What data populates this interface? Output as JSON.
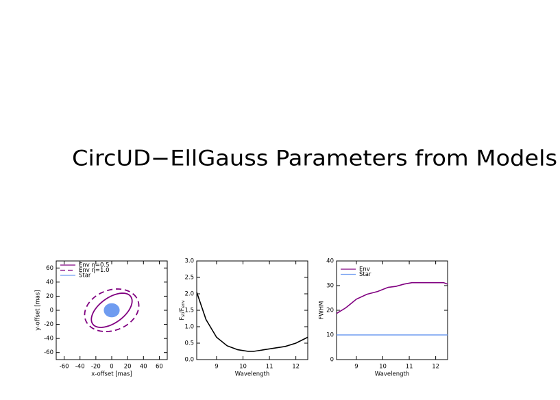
{
  "title": "CircUD−EllGauss Parameters from Models",
  "chart_data": [
    {
      "type": "ellipse",
      "xlabel": "x-offset [mas]",
      "ylabel": "y-offset [mas]",
      "xlim": [
        -70,
        70
      ],
      "ylim": [
        -70,
        70
      ],
      "xticks": [
        -60,
        -40,
        -20,
        0,
        20,
        40,
        60
      ],
      "yticks": [
        -60,
        -40,
        -20,
        0,
        20,
        40,
        60
      ],
      "legend": "upper left",
      "series": [
        {
          "name": "Env η=0.5",
          "color": "#800080",
          "dashed": false,
          "filled": false,
          "center": [
            0,
            0
          ],
          "major": 31,
          "minor": 17,
          "angle": 42
        },
        {
          "name": "Env η=1.0",
          "color": "#800080",
          "dashed": true,
          "filled": false,
          "center": [
            0,
            0
          ],
          "major": 36,
          "minor": 28,
          "angle": 30
        },
        {
          "name": "Star",
          "color": "#6f9cf0",
          "dashed": false,
          "filled": true,
          "center": [
            0,
            0
          ],
          "major": 10,
          "minor": 10,
          "angle": 0
        }
      ]
    },
    {
      "type": "line",
      "xlabel": "Wavelength",
      "ylabel": [
        "F",
        "st",
        "/F",
        "env"
      ],
      "xlim": [
        8.25,
        12.45
      ],
      "ylim": [
        0,
        3
      ],
      "xticks": [
        9,
        10,
        11,
        12
      ],
      "yticks": [
        {
          "value": 0,
          "label": "0.0"
        },
        0.5,
        {
          "value": 1,
          "label": "1.0"
        },
        1.5,
        {
          "value": 2,
          "label": "2.0"
        },
        2.5,
        {
          "value": 3,
          "label": "3.0"
        }
      ],
      "x": [
        8.25,
        8.6,
        9.0,
        9.4,
        9.8,
        10.2,
        10.4,
        10.8,
        11.2,
        11.6,
        12.0,
        12.45
      ],
      "series": [
        {
          "color": "#000000",
          "values": [
            2.05,
            1.22,
            0.68,
            0.42,
            0.3,
            0.25,
            0.25,
            0.3,
            0.35,
            0.4,
            0.5,
            0.68
          ]
        }
      ]
    },
    {
      "type": "line",
      "xlabel": "Wavelength",
      "ylabel": "FWHM",
      "xlim": [
        8.25,
        12.45
      ],
      "ylim": [
        0,
        40
      ],
      "xticks": [
        9,
        10,
        11,
        12
      ],
      "yticks": [
        0,
        10,
        20,
        30,
        40
      ],
      "legend": "upper left",
      "x": [
        8.25,
        8.6,
        9.0,
        9.4,
        9.8,
        10.2,
        10.5,
        10.8,
        11.1,
        11.5,
        12.0,
        12.3,
        12.45
      ],
      "series": [
        {
          "name": "Env",
          "color": "#800080",
          "values": [
            18.7,
            21,
            24.5,
            26.5,
            27.6,
            29.3,
            29.7,
            30.6,
            31.2,
            31.2,
            31.2,
            31.2,
            30.6
          ]
        },
        {
          "name": "Star",
          "color": "#6f9cf0",
          "values": [
            10,
            10,
            10,
            10,
            10,
            10,
            10,
            10,
            10,
            10,
            10,
            10,
            10
          ]
        }
      ]
    }
  ]
}
